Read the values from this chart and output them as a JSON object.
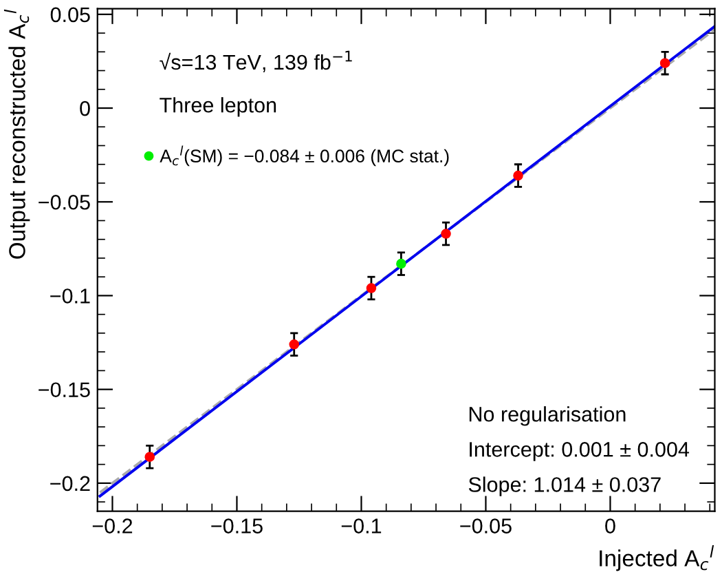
{
  "chart_data": {
    "type": "scatter",
    "xlabel": "Injected A$_{c}$$^{l}$",
    "ylabel": "Output reconstructed A$_{c}$$^{l}$",
    "xlim": [
      -0.206,
      0.042
    ],
    "ylim": [
      -0.215,
      0.053
    ],
    "xticks": [
      {
        "value": -0.2,
        "label": "−0.2"
      },
      {
        "value": -0.15,
        "label": "−0.15"
      },
      {
        "value": -0.1,
        "label": "−0.1"
      },
      {
        "value": -0.05,
        "label": "−0.05"
      },
      0
    ],
    "yticks": [
      {
        "value": -0.2,
        "label": "−0.2"
      },
      {
        "value": -0.15,
        "label": "−0.15"
      },
      {
        "value": -0.1,
        "label": "−0.1"
      },
      {
        "value": -0.05,
        "label": "−0.05"
      },
      0,
      0.05
    ],
    "grid": false,
    "legend": "top left",
    "marker": "circle",
    "series": [
      {
        "type": "line",
        "marker": "none",
        "color": "#aaaaaa",
        "line_style": "dashed",
        "x": [
          -0.205,
          0.042
        ],
        "values": [
          -0.205,
          0.042
        ]
      },
      {
        "type": "line",
        "marker": "none",
        "color": "#0000ee",
        "line_style": "solid",
        "x": [
          -0.205,
          0.042
        ],
        "values": [
          -0.2069,
          0.0436
        ]
      },
      {
        "type": "scatter",
        "color": "#ff0000",
        "x": [
          -0.185,
          -0.127,
          -0.096,
          -0.066,
          -0.037,
          0.022
        ],
        "values": [
          -0.186,
          -0.126,
          -0.096,
          -0.067,
          -0.036,
          0.024
        ],
        "errors": [
          0.006,
          0.006,
          0.006,
          0.006,
          0.006,
          0.006
        ]
      },
      {
        "type": "scatter",
        "name": "A$_{c}$$^{l}$(SM) = −0.084 ± 0.006 (MC stat.)",
        "color": "#00ee00",
        "x": [
          -0.084
        ],
        "values": [
          -0.083
        ],
        "errors": [
          0.006
        ]
      }
    ],
    "annotations": [
      "√s=13 TeV, 139 fb$^{−1}$",
      "Three lepton",
      "No regularisation",
      "Intercept: 0.001 ± 0.004",
      "Slope: 1.014 ± 0.037"
    ]
  }
}
